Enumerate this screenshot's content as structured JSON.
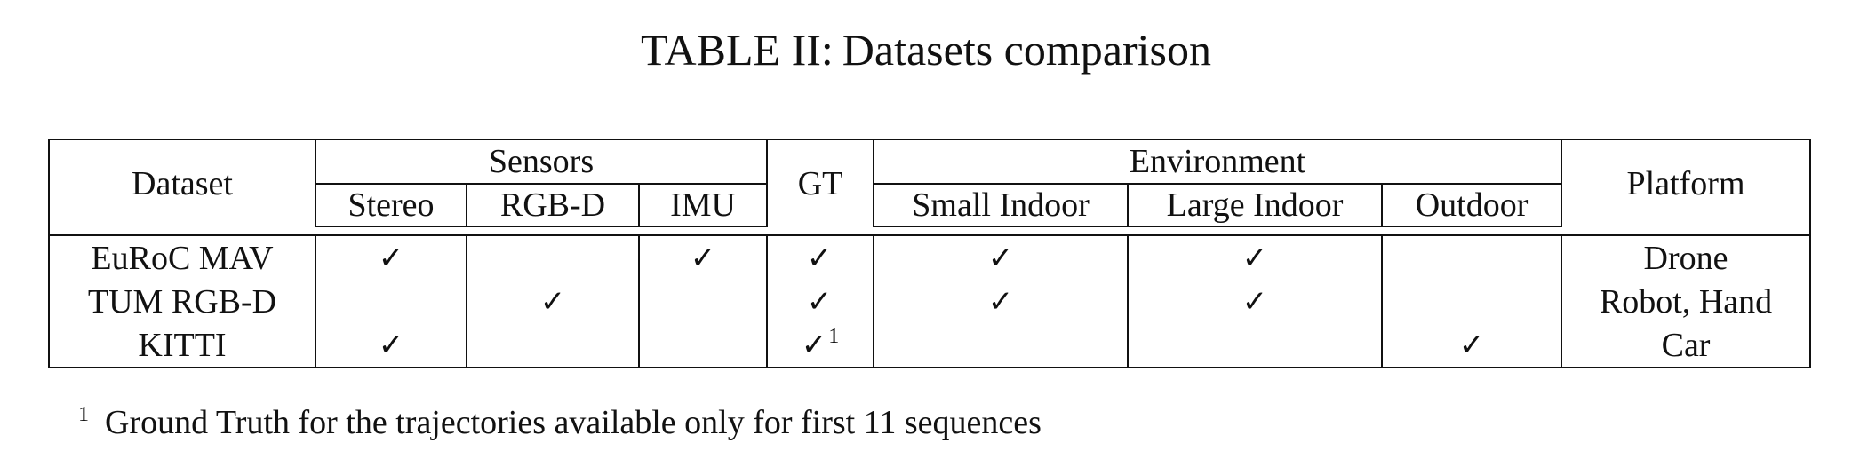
{
  "caption": {
    "label": "TABLE II:",
    "title": "Datasets comparison"
  },
  "table": {
    "headers": {
      "dataset": "Dataset",
      "sensors": "Sensors",
      "stereo": "Stereo",
      "rgbd": "RGB-D",
      "imu": "IMU",
      "gt": "GT",
      "environment": "Environment",
      "small_indoor": "Small Indoor",
      "large_indoor": "Large Indoor",
      "outdoor": "Outdoor",
      "platform": "Platform"
    },
    "check_symbol": "✓",
    "rows": [
      {
        "dataset": "EuRoC MAV",
        "stereo": "✓",
        "rgbd": "",
        "imu": "✓",
        "gt": "✓",
        "gt_note": "",
        "small_indoor": "✓",
        "large_indoor": "✓",
        "outdoor": "",
        "platform": "Drone"
      },
      {
        "dataset": "TUM RGB-D",
        "stereo": "",
        "rgbd": "✓",
        "imu": "",
        "gt": "✓",
        "gt_note": "",
        "small_indoor": "✓",
        "large_indoor": "✓",
        "outdoor": "",
        "platform": "Robot, Hand"
      },
      {
        "dataset": "KITTI",
        "stereo": "✓",
        "rgbd": "",
        "imu": "",
        "gt": "✓",
        "gt_note": "1",
        "small_indoor": "",
        "large_indoor": "",
        "outdoor": "✓",
        "platform": "Car"
      }
    ]
  },
  "footnote": {
    "marker": "1",
    "text": "Ground Truth for the trajectories available only for first 11 sequences"
  }
}
